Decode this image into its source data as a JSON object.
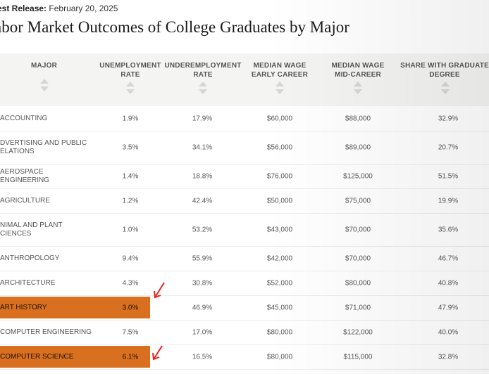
{
  "release": {
    "label": "est Release:",
    "date": "February 20, 2025"
  },
  "title": "abor Market Outcomes of College Graduates by Major",
  "columns": [
    "MAJOR",
    "UNEMPLOYMENT RATE",
    "UNDEREMPLOYMENT RATE",
    "MEDIAN WAGE EARLY CAREER",
    "MEDIAN WAGE MID-CAREER",
    "SHARE WITH GRADUATE DEGREE"
  ],
  "columns_lines": [
    [
      "MAJOR"
    ],
    [
      "UNEMPLOYMENT",
      "RATE"
    ],
    [
      "UNDEREMPLOYMENT",
      "RATE"
    ],
    [
      "MEDIAN WAGE",
      "EARLY CAREER"
    ],
    [
      "MEDIAN WAGE",
      "MID-CAREER"
    ],
    [
      "SHARE WITH GRADUATE",
      "DEGREE"
    ]
  ],
  "rows": [
    {
      "major": "ACCOUNTING",
      "unemployment": "1.9%",
      "underemployment": "17.9%",
      "early": "$60,000",
      "mid": "$88,000",
      "grad": "32.9%",
      "highlighted": false
    },
    {
      "major": "ADVERTISING AND PUBLIC RELATIONS",
      "major_lines": [
        "DVERTISING AND PUBLIC",
        "ELATIONS"
      ],
      "unemployment": "3.5%",
      "underemployment": "34.1%",
      "early": "$56,000",
      "mid": "$89,000",
      "grad": "20.7%",
      "highlighted": false
    },
    {
      "major": "AEROSPACE ENGINEERING",
      "unemployment": "1.4%",
      "underemployment": "18.8%",
      "early": "$76,000",
      "mid": "$125,000",
      "grad": "51.5%",
      "highlighted": false
    },
    {
      "major": "AGRICULTURE",
      "unemployment": "1.2%",
      "underemployment": "42.4%",
      "early": "$50,000",
      "mid": "$75,000",
      "grad": "19.9%",
      "highlighted": false
    },
    {
      "major": "ANIMAL AND PLANT SCIENCES",
      "major_lines": [
        "NIMAL AND PLANT",
        "CIENCES"
      ],
      "unemployment": "1.0%",
      "underemployment": "53.2%",
      "early": "$43,000",
      "mid": "$70,000",
      "grad": "35.6%",
      "highlighted": false
    },
    {
      "major": "ANTHROPOLOGY",
      "unemployment": "9.4%",
      "underemployment": "55.9%",
      "early": "$42,000",
      "mid": "$70,000",
      "grad": "46.7%",
      "highlighted": false
    },
    {
      "major": "ARCHITECTURE",
      "unemployment": "4.3%",
      "underemployment": "30.8%",
      "early": "$52,000",
      "mid": "$80,000",
      "grad": "40.8%",
      "highlighted": false
    },
    {
      "major": "ART HISTORY",
      "unemployment": "3.0%",
      "underemployment": "46.9%",
      "early": "$45,000",
      "mid": "$71,000",
      "grad": "47.9%",
      "highlighted": true
    },
    {
      "major": "COMPUTER ENGINEERING",
      "unemployment": "7.5%",
      "underemployment": "17.0%",
      "early": "$80,000",
      "mid": "$122,000",
      "grad": "40.0%",
      "highlighted": false
    },
    {
      "major": "COMPUTER SCIENCE",
      "unemployment": "6.1%",
      "underemployment": "16.5%",
      "early": "$80,000",
      "mid": "$115,000",
      "grad": "32.8%",
      "highlighted": true
    }
  ],
  "colors": {
    "highlight": "#d9701f",
    "annotation_arrow": "#e8231c",
    "header_bg": "#f4f4f2"
  }
}
